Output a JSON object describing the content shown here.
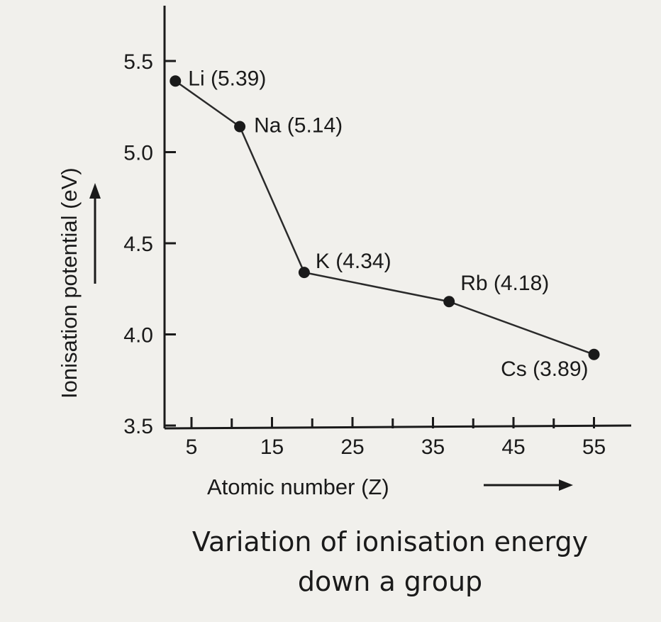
{
  "chart_data": {
    "type": "line",
    "xlabel": "Atomic number (Z)",
    "ylabel": "Ionisation potential (eV)",
    "xlim": [
      2,
      60
    ],
    "ylim": [
      3.5,
      5.8
    ],
    "x_ticks": [
      5,
      15,
      25,
      35,
      45,
      55
    ],
    "y_ticks": [
      3.5,
      4.0,
      4.5,
      5.0,
      5.5
    ],
    "x_tick_labels": [
      "5",
      "15",
      "25",
      "35",
      "45",
      "55"
    ],
    "y_tick_labels": [
      "3.5",
      "4.0",
      "4.5",
      "5.0",
      "5.5"
    ],
    "points": [
      {
        "label": "Li (5.39)",
        "x": 3,
        "y": 5.39
      },
      {
        "label": "Na (5.14)",
        "x": 11,
        "y": 5.14
      },
      {
        "label": "K (4.34)",
        "x": 19,
        "y": 4.34
      },
      {
        "label": "Rb (4.18)",
        "x": 37,
        "y": 4.18
      },
      {
        "label": "Cs (3.89)",
        "x": 55,
        "y": 3.89
      }
    ],
    "grid": false,
    "legend": "none"
  },
  "caption": {
    "line1": "Variation of ionisation energy",
    "line2": "down a group"
  }
}
